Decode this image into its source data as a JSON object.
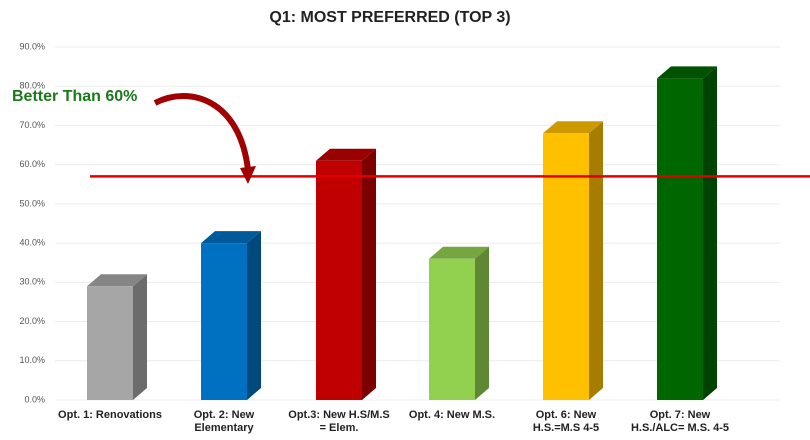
{
  "chart_data": {
    "type": "bar3d",
    "title": "Q1: MOST PREFERRED (TOP 3)",
    "annotation": "Better Than 60%",
    "categories": [
      "Opt. 1: Renovations",
      "Opt. 2: New\nElementary",
      "Opt.3: New H.S/M.S\n= Elem.",
      "Opt. 4: New M.S.",
      "Opt. 6: New\nH.S.=M.S 4-5",
      "Opt. 7: New\nH.S./ALC= M.S. 4-5"
    ],
    "values": [
      29,
      40,
      61,
      36,
      68,
      82
    ],
    "colors": [
      "#a6a6a6",
      "#0070c0",
      "#c00000",
      "#92d050",
      "#ffc000",
      "#006600"
    ],
    "ylim": [
      0,
      90
    ],
    "yticks": [
      {
        "value": 0,
        "label": "0.0%"
      },
      {
        "value": 10,
        "label": "10.0%"
      },
      {
        "value": 20,
        "label": "20.0%"
      },
      {
        "value": 30,
        "label": "30.0%"
      },
      {
        "value": 40,
        "label": "40.0%"
      },
      {
        "value": 50,
        "label": "50.0%"
      },
      {
        "value": 60,
        "label": "60.0%"
      },
      {
        "value": 70,
        "label": "70.0%"
      },
      {
        "value": 80,
        "label": "80.0%"
      },
      {
        "value": 90,
        "label": "90.0%"
      }
    ],
    "grid": true,
    "reference_line": {
      "value": 57,
      "color": "#e00000"
    }
  }
}
